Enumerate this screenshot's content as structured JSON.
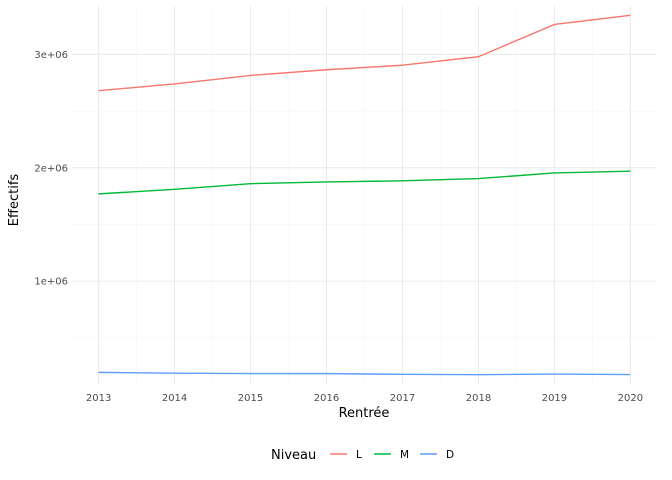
{
  "chart_data": {
    "type": "line",
    "x": [
      2013,
      2014,
      2015,
      2016,
      2017,
      2018,
      2019,
      2020
    ],
    "series": [
      {
        "name": "L",
        "color": "#F8766D",
        "values": [
          2680000,
          2740000,
          2815000,
          2865000,
          2905000,
          2980000,
          3265000,
          3345000
        ]
      },
      {
        "name": "M",
        "color": "#00BA38",
        "values": [
          1770000,
          1810000,
          1860000,
          1875000,
          1885000,
          1905000,
          1955000,
          1970000
        ]
      },
      {
        "name": "D",
        "color": "#619CFF",
        "values": [
          195000,
          188000,
          185000,
          184000,
          178000,
          175000,
          180000,
          176000
        ]
      }
    ],
    "xlabel": "Rentrée",
    "ylabel": "Effectifs",
    "xlim": [
      2012.65,
      2020.35
    ],
    "ylim": [
      92500,
      3427500
    ],
    "y_ticks": [
      1000000,
      2000000,
      3000000
    ],
    "y_tick_labels": [
      "1e+06",
      "2e+06",
      "3e+06"
    ],
    "y_minor_ticks": [
      500000,
      1500000,
      2500000
    ],
    "x_ticks": [
      2013,
      2014,
      2015,
      2016,
      2017,
      2018,
      2019,
      2020
    ],
    "x_tick_labels": [
      "2013",
      "2014",
      "2015",
      "2016",
      "2017",
      "2018",
      "2019",
      "2020"
    ],
    "legend_title": "Niveau",
    "legend_position": "bottom",
    "grid": true
  }
}
